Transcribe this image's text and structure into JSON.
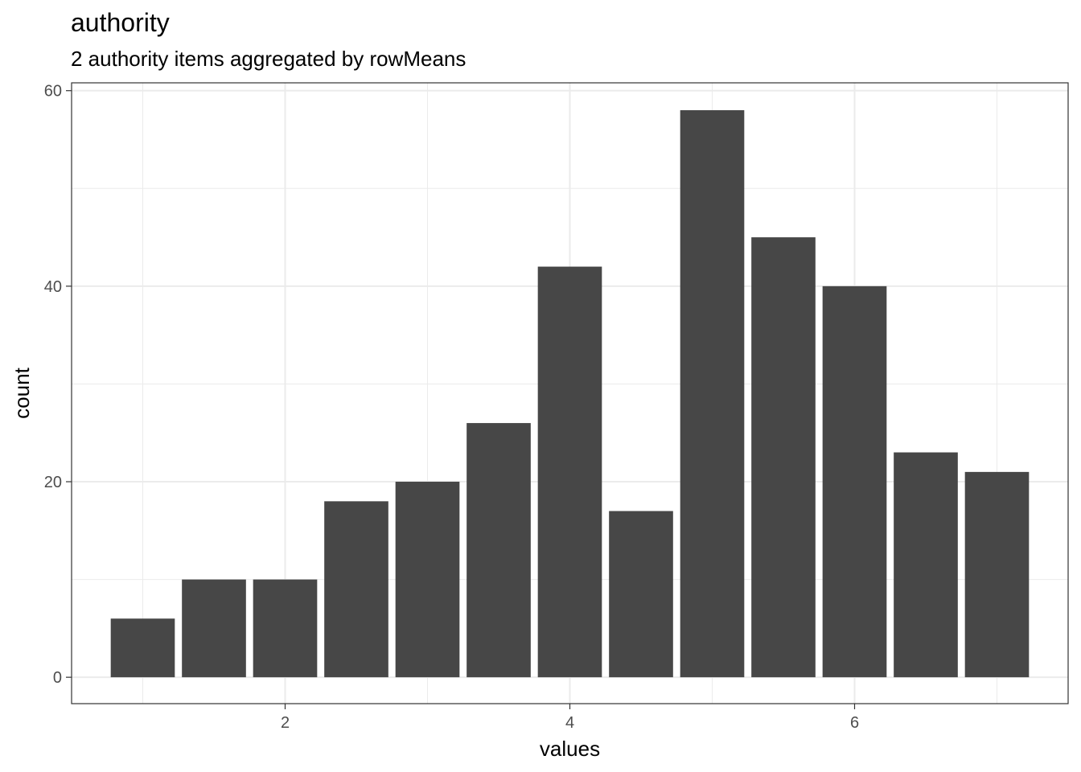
{
  "chart_data": {
    "type": "bar",
    "title": "authority",
    "subtitle": "2 authority items aggregated by rowMeans",
    "xlabel": "values",
    "ylabel": "count",
    "x": [
      1,
      1.5,
      2,
      2.5,
      3,
      3.5,
      4,
      4.5,
      5,
      5.5,
      6,
      6.5,
      7
    ],
    "values": [
      6,
      10,
      10,
      18,
      20,
      26,
      42,
      17,
      58,
      45,
      40,
      23,
      21
    ],
    "xlim": [
      0.5,
      7.5
    ],
    "ylim": [
      -2.7,
      60.8
    ],
    "x_ticks": [
      2,
      4,
      6
    ],
    "y_ticks": [
      0,
      20,
      40,
      60
    ],
    "bar_width": 0.45,
    "grid": true,
    "colors": {
      "bar": "#474747",
      "grid": "#ebebeb",
      "border": "#333333"
    }
  }
}
